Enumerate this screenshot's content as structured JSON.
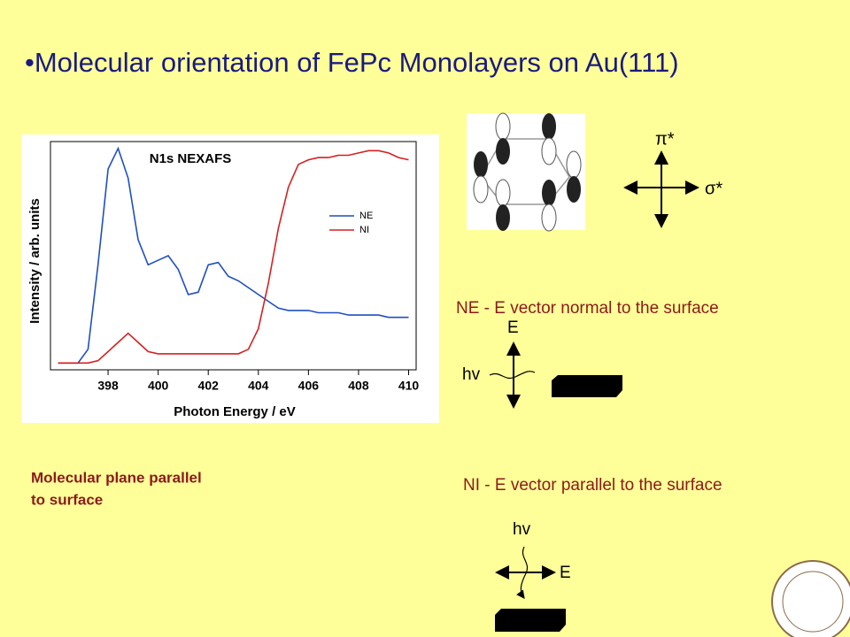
{
  "title": "•Molecular orientation of FePc Monolayers on Au(111)",
  "orbital_labels": {
    "pi": "π*",
    "sigma": "σ*"
  },
  "ne_geometry": {
    "caption": "NE - E vector normal to the surface",
    "e_label": "E",
    "hv_label": "hv"
  },
  "ni_geometry": {
    "caption": "NI - E vector parallel to the surface",
    "e_label": "E",
    "hv_label": "hv"
  },
  "conclusion": [
    "Molecular plane parallel",
    "to surface"
  ],
  "chart_data": {
    "type": "line",
    "title": "N1s NEXAFS",
    "x_label": "Photon Energy  /  eV",
    "y_label": "Intensity  /  arb. units",
    "x": [
      396.0,
      396.4,
      396.8,
      397.2,
      397.6,
      398.0,
      398.4,
      398.8,
      399.2,
      399.6,
      400.0,
      400.4,
      400.8,
      401.2,
      401.6,
      402.0,
      402.4,
      402.8,
      403.2,
      403.6,
      404.0,
      404.4,
      404.8,
      405.2,
      405.6,
      406.0,
      406.4,
      406.8,
      407.2,
      407.6,
      408.0,
      408.4,
      408.8,
      409.2,
      409.6,
      410.0
    ],
    "series": [
      {
        "name": "NE",
        "color": "#1f4fbf",
        "values": [
          0.03,
          0.03,
          0.03,
          0.09,
          0.46,
          0.88,
          0.97,
          0.84,
          0.57,
          0.46,
          0.48,
          0.5,
          0.44,
          0.33,
          0.34,
          0.46,
          0.47,
          0.41,
          0.39,
          0.36,
          0.33,
          0.3,
          0.27,
          0.26,
          0.26,
          0.26,
          0.25,
          0.25,
          0.25,
          0.24,
          0.24,
          0.24,
          0.24,
          0.23,
          0.23,
          0.23
        ]
      },
      {
        "name": "NI",
        "color": "#d42020",
        "values": [
          0.03,
          0.03,
          0.03,
          0.03,
          0.04,
          0.08,
          0.12,
          0.16,
          0.12,
          0.08,
          0.07,
          0.07,
          0.07,
          0.07,
          0.07,
          0.07,
          0.07,
          0.07,
          0.07,
          0.09,
          0.18,
          0.38,
          0.62,
          0.8,
          0.9,
          0.92,
          0.93,
          0.93,
          0.94,
          0.94,
          0.95,
          0.96,
          0.96,
          0.95,
          0.93,
          0.92
        ]
      }
    ],
    "xlim": [
      395.7,
      410.3
    ],
    "xticks": [
      398,
      400,
      402,
      404,
      406,
      408,
      410
    ],
    "ylim": [
      0,
      1
    ]
  }
}
